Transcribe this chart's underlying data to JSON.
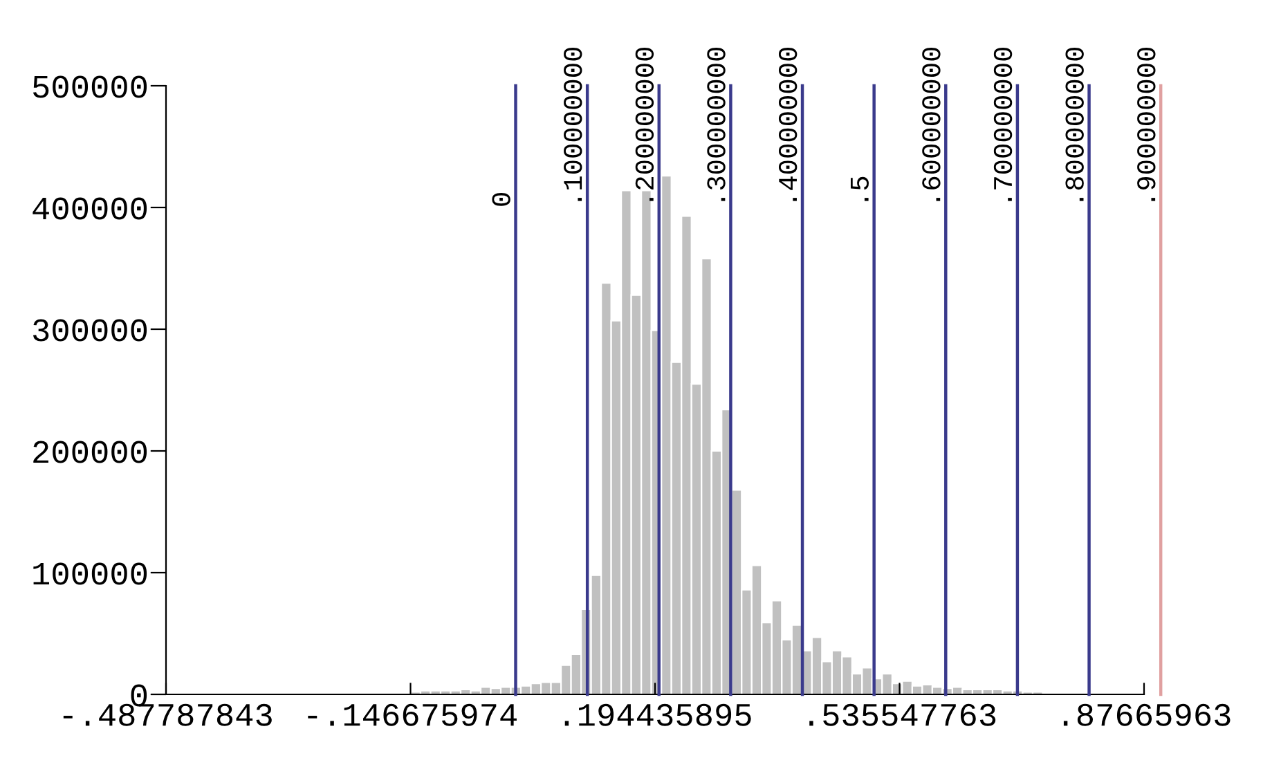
{
  "chart_data": {
    "type": "histogram",
    "bins": [
      -0.1467,
      -0.1327,
      -0.1187,
      -0.1047,
      -0.0907,
      -0.0767,
      -0.0627,
      -0.0487,
      -0.0347,
      -0.0207,
      -0.0067,
      0.0073,
      0.0213,
      0.0353,
      0.0493,
      0.0633,
      0.0773,
      0.0913,
      0.1053,
      0.1193,
      0.1333,
      0.1473,
      0.1613,
      0.1753,
      0.1893,
      0.2033,
      0.2173,
      0.2313,
      0.2453,
      0.2593,
      0.2733,
      0.2873,
      0.3013,
      0.3153,
      0.3293,
      0.3433,
      0.3573,
      0.3713,
      0.3853,
      0.3993,
      0.4133,
      0.4273,
      0.4413,
      0.4553,
      0.4693,
      0.4833,
      0.4973,
      0.5113,
      0.5253,
      0.5393,
      0.5533,
      0.5673,
      0.5813,
      0.5953,
      0.6093,
      0.6233,
      0.6373,
      0.6513,
      0.6653,
      0.6793,
      0.6933,
      0.7073,
      0.7213,
      0.7353
    ],
    "values": [
      2000,
      3000,
      3000,
      3000,
      3000,
      4000,
      3000,
      6000,
      5000,
      6000,
      6000,
      7000,
      9000,
      10000,
      10000,
      24000,
      33000,
      70000,
      98000,
      338000,
      307000,
      414000,
      328000,
      414000,
      299000,
      426000,
      273000,
      393000,
      255000,
      358000,
      200000,
      234000,
      168000,
      86000,
      106000,
      59000,
      77000,
      45000,
      57000,
      36000,
      47000,
      27000,
      36000,
      31000,
      17000,
      22000,
      13000,
      17000,
      9000,
      11000,
      7000,
      8000,
      6000,
      5000,
      6000,
      4000,
      4000,
      4000,
      4000,
      3000,
      3000,
      2000,
      2000
    ],
    "color": "#c0c0c0",
    "xlim": [
      -0.487787843,
      0.87665963
    ],
    "xticks": [
      {
        "value": -0.487787843,
        "label": "-.487787843"
      },
      {
        "value": -0.146675974,
        "label": "-.146675974"
      },
      {
        "value": 0.194435895,
        "label": ".194435895"
      },
      {
        "value": 0.535547763,
        "label": ".535547763"
      },
      {
        "value": 0.87665963,
        "label": ".87665963"
      }
    ],
    "ylim": [
      0,
      500000
    ],
    "yticks": [
      0,
      100000,
      200000,
      300000,
      400000,
      500000
    ],
    "ref_lines": [
      {
        "axis": "x",
        "value": 0,
        "label": "0",
        "color": "#3a3a8c"
      },
      {
        "axis": "x",
        "value": 0.1,
        "label": ".100000000",
        "color": "#3a3a8c"
      },
      {
        "axis": "x",
        "value": 0.2,
        "label": ".200000000",
        "color": "#3a3a8c"
      },
      {
        "axis": "x",
        "value": 0.3,
        "label": ".300000000",
        "color": "#3a3a8c"
      },
      {
        "axis": "x",
        "value": 0.4,
        "label": ".400000000",
        "color": "#3a3a8c"
      },
      {
        "axis": "x",
        "value": 0.5,
        "label": ".5",
        "color": "#3a3a8c"
      },
      {
        "axis": "x",
        "value": 0.6,
        "label": ".600000000",
        "color": "#3a3a8c"
      },
      {
        "axis": "x",
        "value": 0.7,
        "label": ".700000000",
        "color": "#3a3a8c"
      },
      {
        "axis": "x",
        "value": 0.8,
        "label": ".800000000",
        "color": "#3a3a8c"
      },
      {
        "axis": "x",
        "value": 0.9,
        "label": ".900000000",
        "color": "#e0a0a0"
      }
    ],
    "grid": false
  }
}
